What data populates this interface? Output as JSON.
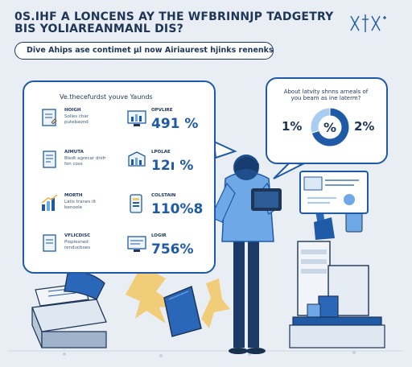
{
  "header": {
    "title_line1": "0S.IHF A LONCENS AY THE WFBRINNJP TADGETRY",
    "title_line2": "BIS YOLIAREANMANL DIS?",
    "corner_icon": "decorative-cross-icon"
  },
  "banner": {
    "text": "Dive Ahips ase contimet µl now Airiaurest hjinks renenks?"
  },
  "stats": {
    "card_title": "Ve.thecefurdst youve Yaunds",
    "items": [
      {
        "label": "HOIGH",
        "description": "Solles char putebaond",
        "icon": "document-icon"
      },
      {
        "label": "OPVLIRE",
        "value": "491 %",
        "icon": "monitor-chart-icon"
      },
      {
        "label": "AIMUTA",
        "description": "Bledt agrecar dnifr fon coss",
        "icon": "paper-icon"
      },
      {
        "label": "LPOLAE",
        "value": "12ı %",
        "icon": "monitor-bars-icon"
      },
      {
        "label": "MORTH",
        "description": "Latis tranes ilt benoole",
        "icon": "growth-chart-icon"
      },
      {
        "label": "COLSTAIN",
        "value": "110%8",
        "icon": "tablet-icon"
      },
      {
        "label": "VFLICDISC",
        "description": "Pioplesned renducboes",
        "icon": "page-icon"
      },
      {
        "label": "LOGIR",
        "value": "756%",
        "icon": "monitor-list-icon"
      }
    ]
  },
  "donut_card": {
    "question": "About latvity shnns arneals of you beam as ine laterm?",
    "left_value": "1%",
    "center_label": "%",
    "right_value": "2%",
    "chart": {
      "type": "pie",
      "values": [
        70,
        30
      ],
      "colors": [
        "#1f5aa6",
        "#a9cdf2"
      ]
    }
  },
  "colors": {
    "primary": "#1f5aa6",
    "navy": "#1d3557",
    "light_blue": "#a9cdf2",
    "background": "#e9eef4",
    "accent_yellow": "#f2c96b"
  }
}
